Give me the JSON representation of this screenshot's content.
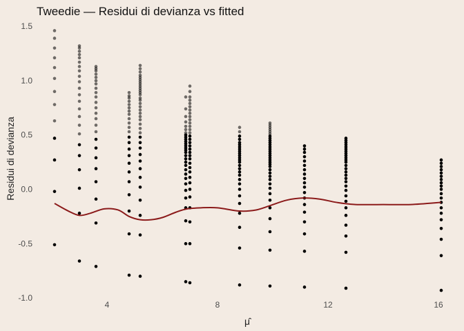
{
  "chart_data": {
    "type": "scatter",
    "title": "Tweedie — Residui di devianza vs fitted",
    "xlabel": "μ̂",
    "ylabel": "Residui di devianza",
    "xlim": [
      1.5,
      16.5
    ],
    "ylim": [
      -1.05,
      1.52
    ],
    "xticks": [
      4,
      8,
      12,
      16
    ],
    "xtick_labels": [
      "4",
      "8",
      "12",
      "16"
    ],
    "yticks": [
      -1.0,
      -0.5,
      0.0,
      0.5,
      1.0,
      1.5
    ],
    "ytick_labels": [
      "-1.0",
      "-0.5",
      "0.0",
      "0.5",
      "1.0",
      "1.5"
    ],
    "grid": false,
    "colors": {
      "background": "#f3ebe3",
      "points": "#000000",
      "smooth": "#8b1a1a"
    },
    "point_columns": [
      {
        "x": 2.1,
        "y_values": [
          -0.51,
          -0.02,
          0.27,
          0.47,
          0.63,
          0.78,
          0.9,
          1.02,
          1.12,
          1.21,
          1.3,
          1.39,
          1.46
        ]
      },
      {
        "x": 3.0,
        "y_values": [
          -0.66,
          -0.22,
          0.01,
          0.18,
          0.31,
          0.41,
          0.51,
          0.59,
          0.67,
          0.74,
          0.81,
          0.87,
          0.93,
          0.99,
          1.04,
          1.09,
          1.13,
          1.17,
          1.21,
          1.24,
          1.27,
          1.3,
          1.32
        ]
      },
      {
        "x": 3.6,
        "y_values": [
          -0.71,
          -0.31,
          -0.09,
          0.07,
          0.19,
          0.29,
          0.38,
          0.46,
          0.53,
          0.59,
          0.65,
          0.7,
          0.75,
          0.8,
          0.85,
          0.89,
          0.93,
          0.97,
          1.0,
          1.03,
          1.06,
          1.09,
          1.11,
          1.13
        ]
      },
      {
        "x": 4.8,
        "y_values": [
          -0.79,
          -0.41,
          -0.2,
          -0.05,
          0.07,
          0.16,
          0.24,
          0.31,
          0.37,
          0.43,
          0.48,
          0.53,
          0.57,
          0.61,
          0.65,
          0.69,
          0.72,
          0.75,
          0.78,
          0.81,
          0.84,
          0.86,
          0.89
        ]
      },
      {
        "x": 5.2,
        "y_values": [
          -0.8,
          -0.42,
          -0.24,
          -0.1,
          0.02,
          0.11,
          0.19,
          0.26,
          0.32,
          0.38,
          0.43,
          0.48,
          0.52,
          0.56,
          0.6,
          0.64,
          0.67,
          0.7,
          0.73,
          0.76,
          0.79,
          0.82,
          0.84,
          0.87,
          0.89,
          0.91,
          0.93,
          0.95,
          0.97,
          0.99,
          1.01,
          1.03,
          1.05,
          1.08,
          1.11,
          1.14
        ]
      },
      {
        "x": 6.85,
        "y_values": [
          -0.85,
          -0.5,
          -0.29,
          -0.17,
          -0.08,
          -0.01,
          0.05,
          0.1,
          0.14,
          0.18,
          0.22,
          0.25,
          0.28,
          0.31,
          0.34,
          0.36,
          0.38,
          0.4,
          0.42,
          0.44,
          0.46,
          0.48,
          0.5,
          0.52,
          0.55,
          0.58,
          0.62,
          0.67,
          0.74,
          0.85
        ]
      },
      {
        "x": 7.0,
        "y_values": [
          -0.86,
          -0.5,
          -0.3,
          -0.17,
          -0.07,
          0.0,
          0.06,
          0.11,
          0.16,
          0.2,
          0.24,
          0.28,
          0.31,
          0.34,
          0.37,
          0.4,
          0.43,
          0.46,
          0.49,
          0.52,
          0.55,
          0.58,
          0.61,
          0.64,
          0.67,
          0.7,
          0.73,
          0.76,
          0.79,
          0.82,
          0.85,
          0.9,
          0.95
        ]
      },
      {
        "x": 8.8,
        "y_values": [
          -0.88,
          -0.54,
          -0.35,
          -0.22,
          -0.13,
          -0.06,
          0.0,
          0.05,
          0.09,
          0.13,
          0.16,
          0.19,
          0.22,
          0.25,
          0.27,
          0.29,
          0.31,
          0.33,
          0.35,
          0.37,
          0.39,
          0.41,
          0.43,
          0.46,
          0.49,
          0.53,
          0.57
        ]
      },
      {
        "x": 9.9,
        "y_values": [
          -0.89,
          -0.56,
          -0.39,
          -0.27,
          -0.17,
          -0.1,
          -0.04,
          0.01,
          0.05,
          0.09,
          0.12,
          0.15,
          0.18,
          0.21,
          0.23,
          0.25,
          0.27,
          0.29,
          0.31,
          0.33,
          0.35,
          0.37,
          0.39,
          0.41,
          0.43,
          0.45,
          0.47,
          0.49,
          0.51,
          0.53,
          0.55,
          0.57,
          0.59,
          0.61
        ]
      },
      {
        "x": 11.15,
        "y_values": [
          -0.9,
          -0.57,
          -0.41,
          -0.3,
          -0.21,
          -0.14,
          -0.08,
          -0.03,
          0.02,
          0.06,
          0.1,
          0.14,
          0.18,
          0.22,
          0.26,
          0.3,
          0.34,
          0.37,
          0.4
        ]
      },
      {
        "x": 12.65,
        "y_values": [
          -0.91,
          -0.58,
          -0.43,
          -0.33,
          -0.24,
          -0.17,
          -0.11,
          -0.06,
          -0.01,
          0.03,
          0.07,
          0.1,
          0.13,
          0.16,
          0.19,
          0.22,
          0.25,
          0.27,
          0.29,
          0.31,
          0.33,
          0.35,
          0.37,
          0.39,
          0.41,
          0.43,
          0.45,
          0.47
        ]
      },
      {
        "x": 16.1,
        "y_values": [
          -0.93,
          -0.61,
          -0.46,
          -0.36,
          -0.28,
          -0.22,
          -0.17,
          -0.12,
          -0.08,
          -0.04,
          0.0,
          0.03,
          0.06,
          0.09,
          0.12,
          0.15,
          0.18,
          0.21,
          0.24,
          0.27
        ]
      }
    ],
    "smooth_line": {
      "x": [
        2.1,
        2.6,
        3.0,
        3.4,
        3.9,
        4.4,
        4.8,
        5.2,
        5.6,
        6.0,
        6.5,
        6.9,
        7.4,
        8.0,
        8.8,
        9.4,
        9.9,
        10.5,
        11.1,
        11.7,
        12.3,
        13.0,
        14.0,
        15.0,
        16.1
      ],
      "y": [
        -0.13,
        -0.2,
        -0.24,
        -0.22,
        -0.18,
        -0.19,
        -0.25,
        -0.28,
        -0.28,
        -0.26,
        -0.21,
        -0.18,
        -0.17,
        -0.17,
        -0.2,
        -0.19,
        -0.15,
        -0.1,
        -0.08,
        -0.09,
        -0.12,
        -0.14,
        -0.14,
        -0.14,
        -0.12
      ]
    }
  }
}
